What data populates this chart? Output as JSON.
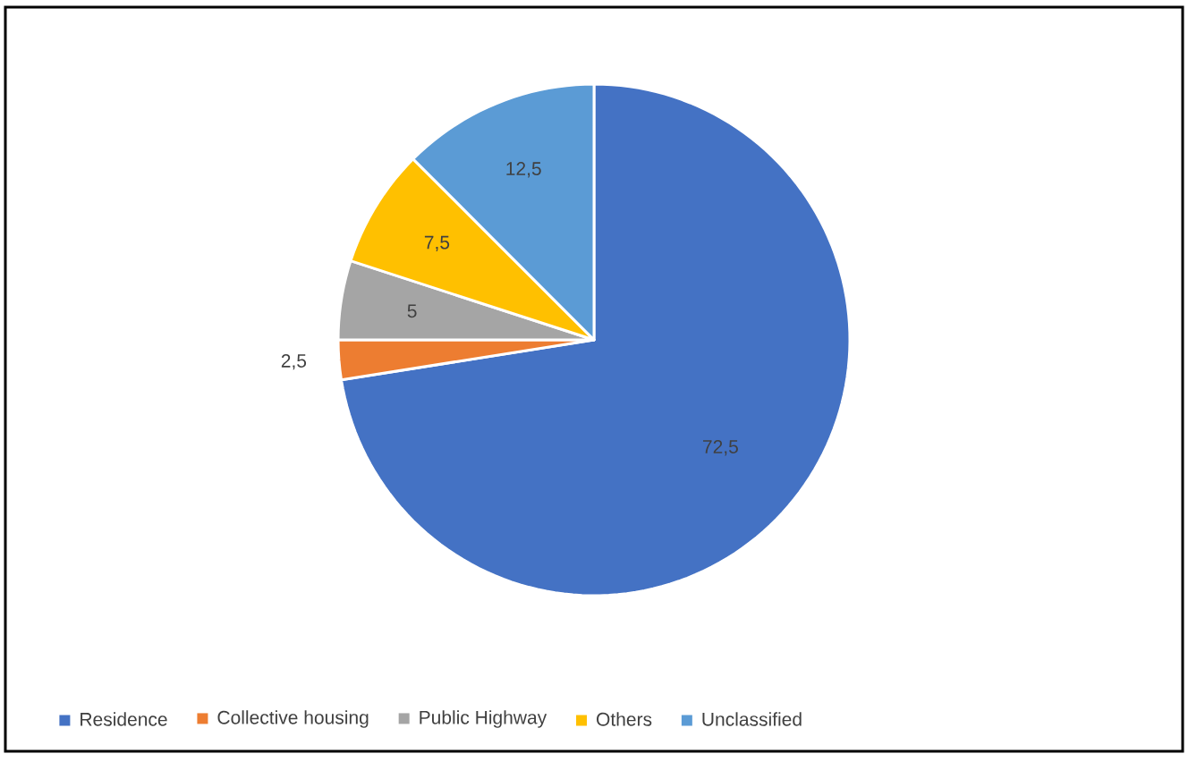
{
  "chart_data": {
    "type": "pie",
    "categories": [
      "Residence",
      "Collective housing",
      "Public Highway",
      "Others",
      "Unclassified"
    ],
    "values": [
      72.5,
      2.5,
      5,
      7.5,
      12.5
    ],
    "value_labels": [
      "72,5",
      "2,5",
      "5",
      "7,5",
      "12,5"
    ],
    "colors": [
      "#4472c4",
      "#ed7d31",
      "#a5a5a5",
      "#ffc000",
      "#5b9bd5"
    ],
    "legend": "bottom"
  }
}
